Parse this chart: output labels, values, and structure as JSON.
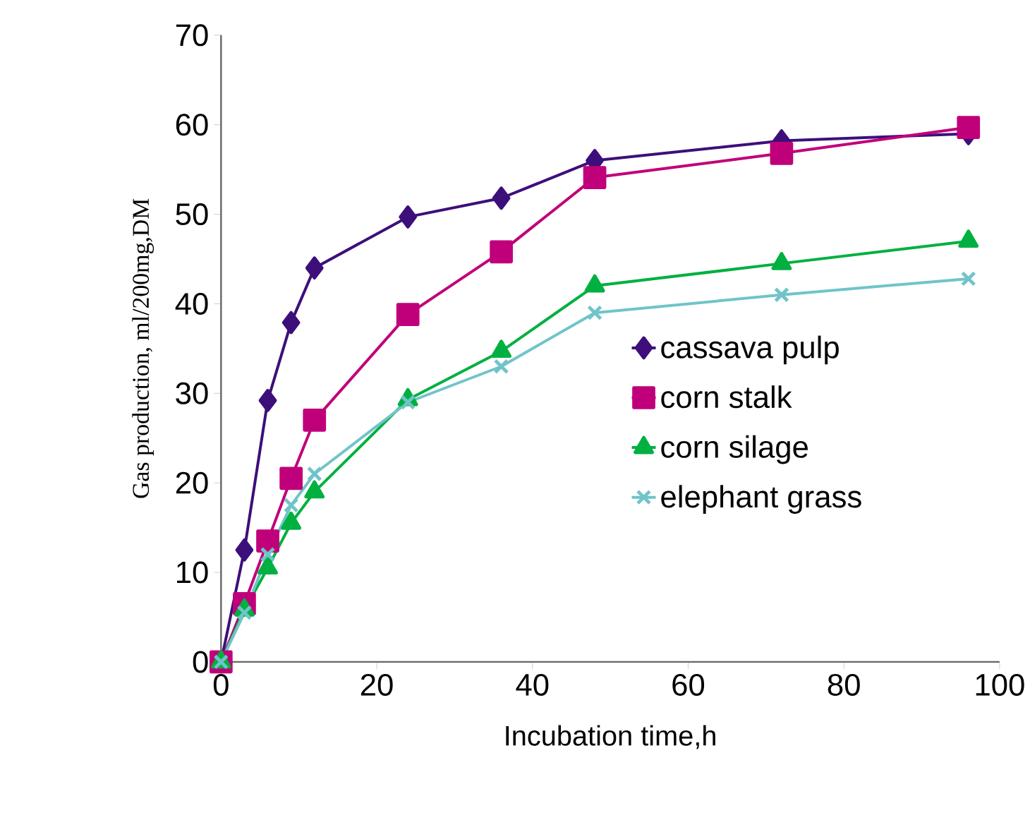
{
  "chart_data": {
    "type": "line",
    "xlabel": "Incubation time,h",
    "ylabel": "Gas production, ml/200mg,DM",
    "x": [
      0,
      3,
      6,
      9,
      12,
      24,
      36,
      48,
      72,
      96
    ],
    "series": [
      {
        "name": "cassava pulp",
        "color": "#3d0f7a",
        "marker": "diamond",
        "values": [
          0,
          12.5,
          29.2,
          37.9,
          44,
          49.7,
          51.8,
          56,
          58.2,
          59
        ]
      },
      {
        "name": "corn stalk",
        "color": "#c0007a",
        "marker": "square",
        "values": [
          0,
          6.5,
          13.5,
          20.5,
          27,
          38.8,
          45.8,
          54.1,
          56.8,
          59.7
        ]
      },
      {
        "name": "corn silage",
        "color": "#00b040",
        "marker": "triangle",
        "values": [
          0,
          5.8,
          10.5,
          15.5,
          19,
          29.3,
          34.7,
          42,
          44.5,
          47
        ]
      },
      {
        "name": "elephant grass",
        "color": "#70c4c8",
        "marker": "cross",
        "values": [
          0,
          5.5,
          12,
          17.5,
          21,
          29,
          33,
          39,
          41,
          42.8
        ]
      }
    ],
    "xlim": [
      0,
      100
    ],
    "ylim": [
      0,
      70
    ],
    "xticks": [
      0,
      20,
      40,
      60,
      80,
      100
    ],
    "yticks": [
      0,
      10,
      20,
      30,
      40,
      50,
      60,
      70
    ],
    "legend": "right",
    "grid": false,
    "line_style": "solid"
  }
}
